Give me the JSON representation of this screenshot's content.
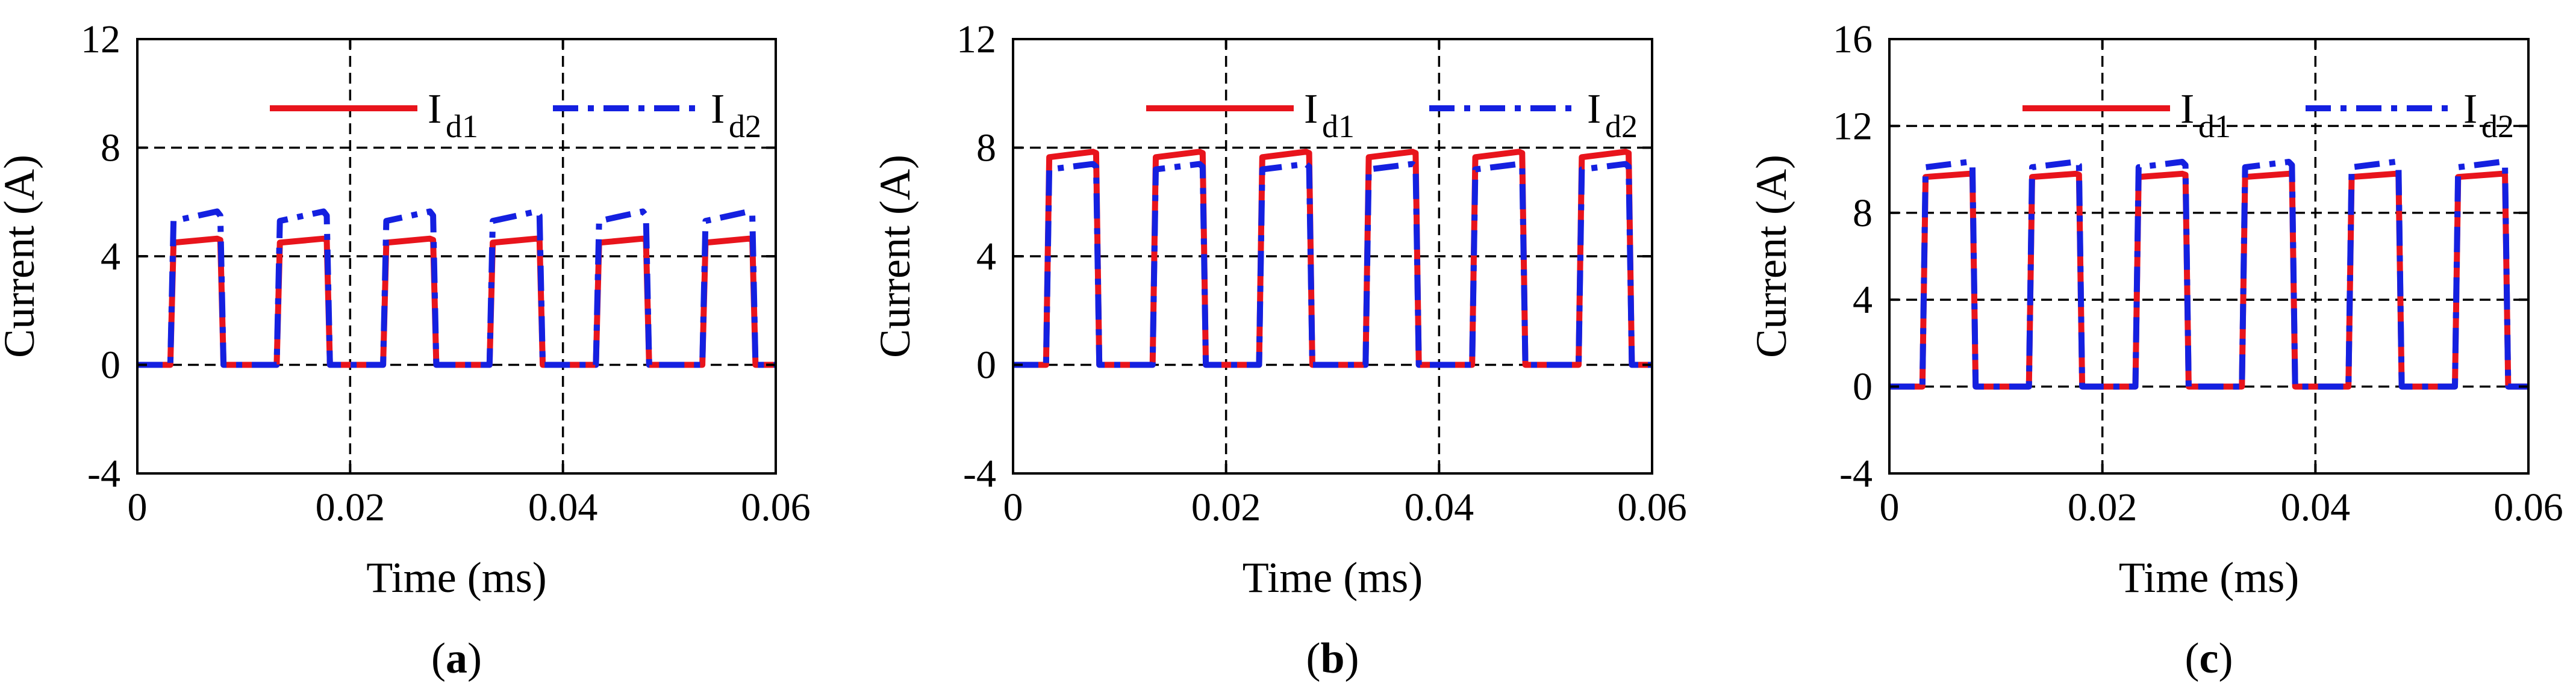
{
  "chart_data": [
    {
      "type": "line",
      "panel_label": "(a)",
      "panel_letter": "a",
      "xlabel": "Time (ms)",
      "ylabel": "Current (A)",
      "xlim": [
        0,
        0.06
      ],
      "ylim": [
        -4,
        12
      ],
      "xticks": [
        0,
        0.02,
        0.04,
        0.06
      ],
      "xtick_labels": [
        "0",
        "0.02",
        "0.04",
        "0.06"
      ],
      "yticks": [
        -4,
        0,
        4,
        8,
        12
      ],
      "ytick_labels": [
        "-4",
        "0",
        "4",
        "8",
        "12"
      ],
      "grid": true,
      "legend_position": "top-right",
      "pulse_period": 0.01,
      "pulse_count": 6,
      "series": [
        {
          "name": "I",
          "subscript": "d1",
          "color": "#e8141c",
          "style": "solid",
          "x": [
            0,
            0.0031,
            0.0034,
            0.0075,
            0.0078,
            0.0081
          ],
          "y": [
            0,
            0,
            4.5,
            4.65,
            4.6,
            0
          ]
        },
        {
          "name": "I",
          "subscript": "d2",
          "color": "#1420e0",
          "style": "dashdot",
          "x": [
            0,
            0.0031,
            0.0034,
            0.0075,
            0.0078,
            0.0081
          ],
          "y": [
            0,
            0,
            5.3,
            5.65,
            5.5,
            0
          ]
        }
      ]
    },
    {
      "type": "line",
      "panel_label": "(b)",
      "panel_letter": "b",
      "xlabel": "Time (ms)",
      "ylabel": "Current (A)",
      "xlim": [
        0,
        0.06
      ],
      "ylim": [
        -4,
        12
      ],
      "xticks": [
        0,
        0.02,
        0.04,
        0.06
      ],
      "xtick_labels": [
        "0",
        "0.02",
        "0.04",
        "0.06"
      ],
      "yticks": [
        -4,
        0,
        4,
        8,
        12
      ],
      "ytick_labels": [
        "-4",
        "0",
        "4",
        "8",
        "12"
      ],
      "grid": true,
      "legend_position": "top-right",
      "pulse_period": 0.01,
      "pulse_count": 6,
      "series": [
        {
          "name": "I",
          "subscript": "d1",
          "color": "#e8141c",
          "style": "solid",
          "x": [
            0,
            0.0031,
            0.0034,
            0.0075,
            0.0078,
            0.0081
          ],
          "y": [
            0,
            0,
            7.65,
            7.85,
            7.8,
            0
          ]
        },
        {
          "name": "I",
          "subscript": "d2",
          "color": "#1420e0",
          "style": "dashdot",
          "x": [
            0,
            0.0031,
            0.0034,
            0.0075,
            0.0078,
            0.0081
          ],
          "y": [
            0,
            0,
            7.2,
            7.4,
            7.3,
            0
          ]
        }
      ]
    },
    {
      "type": "line",
      "panel_label": "(c)",
      "panel_letter": "c",
      "xlabel": "Time (ms)",
      "ylabel": "Current (A)",
      "xlim": [
        0,
        0.06
      ],
      "ylim": [
        -4,
        16
      ],
      "xticks": [
        0,
        0.02,
        0.04,
        0.06
      ],
      "xtick_labels": [
        "0",
        "0.02",
        "0.04",
        "0.06"
      ],
      "yticks": [
        -4,
        0,
        4,
        8,
        12,
        16
      ],
      "ytick_labels": [
        "-4",
        "0",
        "4",
        "8",
        "12",
        "16"
      ],
      "grid": true,
      "legend_position": "top-right",
      "pulse_period": 0.01,
      "pulse_count": 6,
      "series": [
        {
          "name": "I",
          "subscript": "d1",
          "color": "#e8141c",
          "style": "solid",
          "x": [
            0,
            0.0031,
            0.0034,
            0.0075,
            0.0078,
            0.0081
          ],
          "y": [
            0,
            0,
            9.65,
            9.8,
            9.75,
            0
          ]
        },
        {
          "name": "I",
          "subscript": "d2",
          "color": "#1420e0",
          "style": "dashdot",
          "x": [
            0,
            0.0031,
            0.0034,
            0.0075,
            0.0078,
            0.0081
          ],
          "y": [
            0,
            0,
            10.1,
            10.35,
            10.2,
            0
          ]
        }
      ]
    }
  ]
}
